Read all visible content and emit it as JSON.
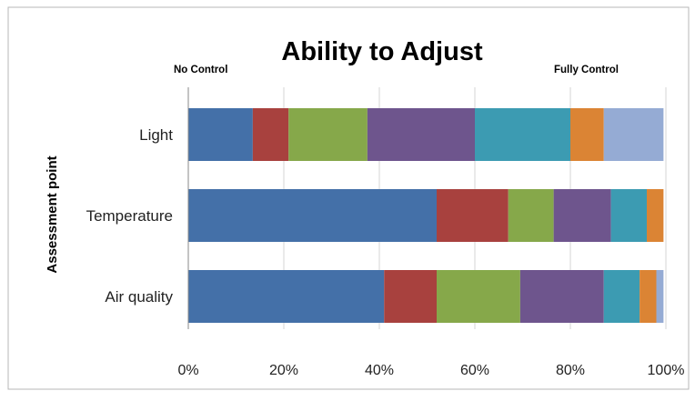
{
  "chart_data": {
    "type": "bar",
    "orientation": "horizontal",
    "stacked": true,
    "stack_mode": "percent",
    "title": "Ability to Adjust",
    "ylabel": "Assessment point",
    "xlabel": "",
    "annotations": {
      "left": "No Control",
      "right": "Fully Control"
    },
    "categories": [
      "Light",
      "Temperature",
      "Air quality"
    ],
    "x_ticks": [
      "0%",
      "20%",
      "40%",
      "60%",
      "80%",
      "100%"
    ],
    "xlim": [
      0,
      100
    ],
    "grid": "vertical",
    "legend": "none",
    "series": [
      {
        "values": [
          13.5,
          52.0,
          41.0
        ],
        "color": "#4470A8"
      },
      {
        "values": [
          7.5,
          15.0,
          11.0
        ],
        "color": "#A8413E"
      },
      {
        "values": [
          16.5,
          9.5,
          17.5
        ],
        "color": "#86A84A"
      },
      {
        "values": [
          22.5,
          12.0,
          17.5
        ],
        "color": "#6E558D"
      },
      {
        "values": [
          20.0,
          7.5,
          7.5
        ],
        "color": "#3C9BB2"
      },
      {
        "values": [
          7.0,
          3.5,
          3.5
        ],
        "color": "#DB8434"
      },
      {
        "values": [
          12.5,
          0.0,
          1.5
        ],
        "color": "#95ABD4"
      }
    ]
  }
}
